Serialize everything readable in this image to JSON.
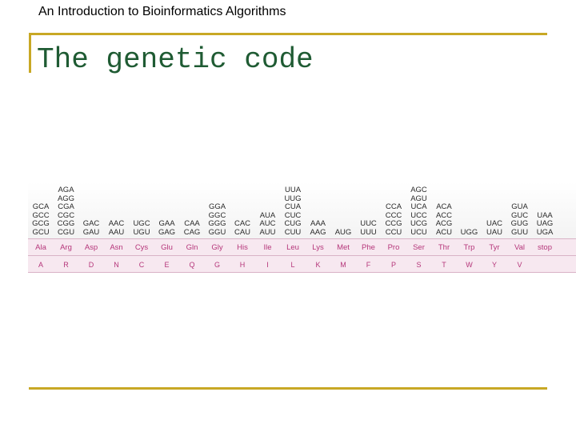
{
  "slide": {
    "header": "An Introduction to Bioinformatics Algorithms",
    "title": "The genetic code"
  },
  "colors": {
    "accent_rule": "#c8a825",
    "title_text": "#1f5b33",
    "amino_acid_text": "#b5367a",
    "band_fill": "#f7e8f0"
  },
  "table": {
    "columns": [
      {
        "codons": [
          "GCA",
          "GCC",
          "GCG",
          "GCU"
        ],
        "aa3": "Ala",
        "aa1": "A"
      },
      {
        "codons": [
          "AGA",
          "AGG",
          "CGA",
          "CGC",
          "CGG",
          "CGU"
        ],
        "aa3": "Arg",
        "aa1": "R"
      },
      {
        "codons": [
          "GAC",
          "GAU"
        ],
        "aa3": "Asp",
        "aa1": "D"
      },
      {
        "codons": [
          "AAC",
          "AAU"
        ],
        "aa3": "Asn",
        "aa1": "N"
      },
      {
        "codons": [
          "UGC",
          "UGU"
        ],
        "aa3": "Cys",
        "aa1": "C"
      },
      {
        "codons": [
          "GAA",
          "GAG"
        ],
        "aa3": "Glu",
        "aa1": "E"
      },
      {
        "codons": [
          "CAA",
          "CAG"
        ],
        "aa3": "Gln",
        "aa1": "Q"
      },
      {
        "codons": [
          "GGA",
          "GGC",
          "GGG",
          "GGU"
        ],
        "aa3": "Gly",
        "aa1": "G"
      },
      {
        "codons": [
          "CAC",
          "CAU"
        ],
        "aa3": "His",
        "aa1": "H"
      },
      {
        "codons": [
          "AUA",
          "AUC",
          "AUU"
        ],
        "aa3": "Ile",
        "aa1": "I"
      },
      {
        "codons": [
          "UUA",
          "UUG",
          "CUA",
          "CUC",
          "CUG",
          "CUU"
        ],
        "aa3": "Leu",
        "aa1": "L"
      },
      {
        "codons": [
          "AAA",
          "AAG"
        ],
        "aa3": "Lys",
        "aa1": "K"
      },
      {
        "codons": [
          "AUG"
        ],
        "aa3": "Met",
        "aa1": "M"
      },
      {
        "codons": [
          "UUC",
          "UUU"
        ],
        "aa3": "Phe",
        "aa1": "F"
      },
      {
        "codons": [
          "CCA",
          "CCC",
          "CCG",
          "CCU"
        ],
        "aa3": "Pro",
        "aa1": "P"
      },
      {
        "codons": [
          "AGC",
          "AGU",
          "UCA",
          "UCC",
          "UCG",
          "UCU"
        ],
        "aa3": "Ser",
        "aa1": "S"
      },
      {
        "codons": [
          "ACA",
          "ACC",
          "ACG",
          "ACU"
        ],
        "aa3": "Thr",
        "aa1": "T"
      },
      {
        "codons": [
          "UGG"
        ],
        "aa3": "Trp",
        "aa1": "W"
      },
      {
        "codons": [
          "UAC",
          "UAU"
        ],
        "aa3": "Tyr",
        "aa1": "Y"
      },
      {
        "codons": [
          "GUA",
          "GUC",
          "GUG",
          "GUU"
        ],
        "aa3": "Val",
        "aa1": "V"
      },
      {
        "codons": [
          "UAA",
          "UAG",
          "UGA"
        ],
        "aa3": "stop",
        "aa1": ""
      }
    ]
  }
}
